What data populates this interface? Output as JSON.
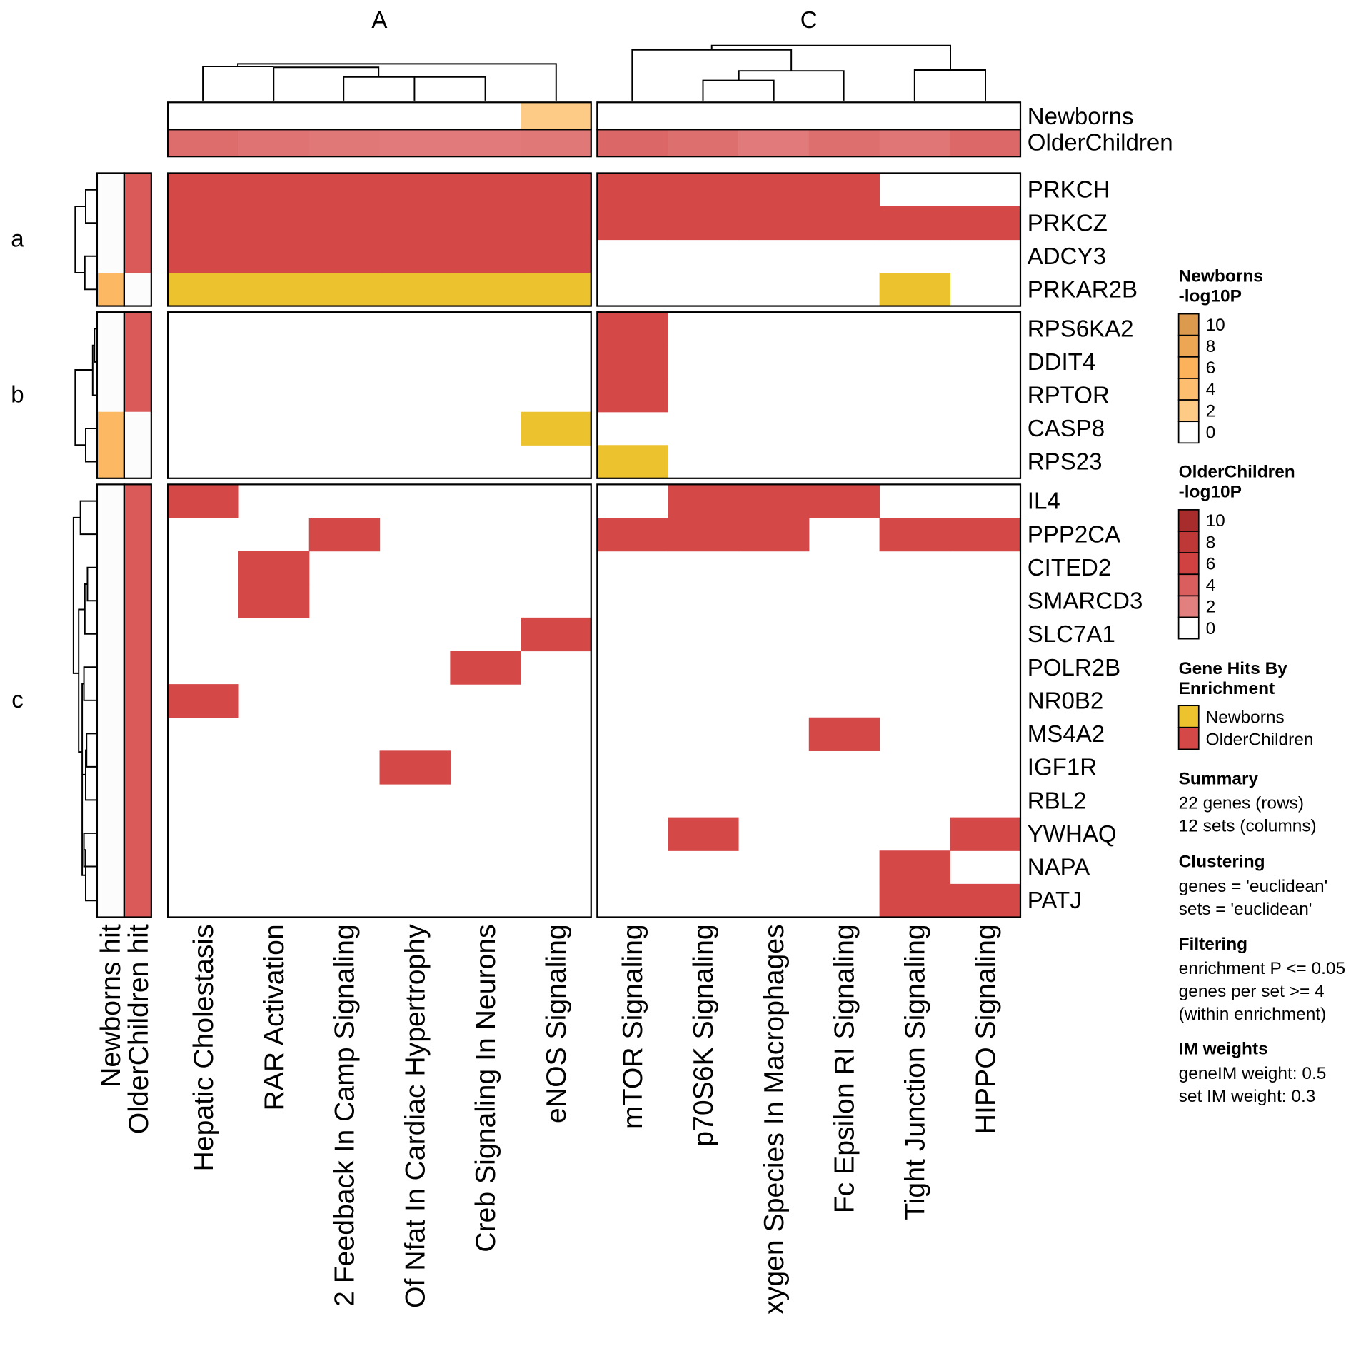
{
  "chart_data": {
    "type": "heatmap",
    "column_groups": [
      {
        "title": "A",
        "columns": [
          "Hepatic Cholestasis",
          "RAR Activation",
          "2 Feedback In Camp Signaling",
          "Of Nfat In Cardiac Hypertrophy",
          "Creb Signaling In Neurons",
          "eNOS Signaling"
        ]
      },
      {
        "title": "C",
        "columns": [
          "mTOR Signaling",
          "p70S6K Signaling",
          "xygen Species In Macrophages",
          "Fc Epsilon RI Signaling",
          "Tight Junction Signaling",
          "HIPPO Signaling"
        ]
      }
    ],
    "row_groups": [
      {
        "label": "a",
        "genes": [
          "PRKCH",
          "PRKCZ",
          "ADCY3",
          "PRKAR2B"
        ]
      },
      {
        "label": "b",
        "genes": [
          "RPS6KA2",
          "DDIT4",
          "RPTOR",
          "CASP8",
          "RPS23"
        ]
      },
      {
        "label": "c",
        "genes": [
          "IL4",
          "PPP2CA",
          "CITED2",
          "SMARCD3",
          "SLC7A1",
          "POLR2B",
          "NR0B2",
          "MS4A2",
          "IGF1R",
          "RBL2",
          "YWHAQ",
          "NAPA",
          "PATJ"
        ]
      }
    ],
    "cell_legend": {
      "N": "Newborns",
      "O": "OlderChildren",
      "0": "none"
    },
    "cells": {
      "PRKCH": "OOOOOO OOOO00",
      "PRKCZ": "OOOOOO OOOOOO",
      "ADCY3": "OOOOOO 000000",
      "PRKAR2B": "NNNNNN 0000N0",
      "RPS6KA2": "000000 O00000",
      "DDIT4": "000000 O00000",
      "RPTOR": "000000 O00000",
      "CASP8": "00000N 000000",
      "RPS23": "000000 N00000",
      "IL4": "O00000 0OOO00",
      "PPP2CA": "00O000 OOO0OO",
      "CITED2": "0O0000 000000",
      "SMARCD3": "0O0000 000000",
      "SLC7A1": "00000O 000000",
      "POLR2B": "0000O0 000000",
      "NR0B2": "O00000 000000",
      "MS4A2": "000000 000O00",
      "IGF1R": "000O00 000000",
      "RBL2": "000000 000000",
      "YWHAQ": "000000 0O000O",
      "NAPA": "000000 0000O0",
      "PATJ": "000000 0000OO"
    },
    "column_annotations": {
      "labels": [
        "Newborns",
        "OlderChildren"
      ],
      "Newborns": [
        0,
        0,
        0,
        0,
        0,
        2,
        0,
        0,
        0,
        0,
        0,
        0
      ],
      "OlderChildren": [
        3.2,
        2.8,
        2.5,
        2.3,
        2.3,
        2.5,
        3.5,
        3.0,
        2.3,
        3.0,
        2.6,
        3.4
      ]
    },
    "row_annotations": {
      "labels": [
        "Newborns hit",
        "OlderChildren hit"
      ],
      "Newborns hit": {
        "PRKAR2B": 5,
        "CASP8": 5,
        "RPS23": 5
      },
      "OlderChildren hit": {
        "default": 4,
        "PRKAR2B": 0,
        "CASP8": 0,
        "RPS23": 0
      }
    },
    "colors": {
      "newborns_cell": "#EDC22F",
      "olderchildren_cell": "#D44848",
      "newborns_scale": [
        "#FFFFFF",
        "#FECB87",
        "#FDBF6F",
        "#FBB25A",
        "#EDA653",
        "#DB9A4E"
      ],
      "olderchildren_scale": [
        "#FFFFFF",
        "#E28080",
        "#DA5E5E",
        "#D04242",
        "#BE3838",
        "#A82C2C"
      ]
    }
  },
  "legend": {
    "newborns": {
      "title1": "Newborns",
      "title2": "-log10P",
      "ticks": [
        "10",
        "8",
        "6",
        "4",
        "2",
        "0"
      ]
    },
    "olderchildren": {
      "title1": "OlderChildren",
      "title2": "-log10P",
      "ticks": [
        "10",
        "8",
        "6",
        "4",
        "2",
        "0"
      ]
    },
    "hits": {
      "title1": "Gene Hits By",
      "title2": "Enrichment",
      "items": [
        "Newborns",
        "OlderChildren"
      ]
    },
    "summary": {
      "title": "Summary",
      "lines": [
        "22 genes (rows)",
        "12 sets (columns)"
      ]
    },
    "clustering": {
      "title": "Clustering",
      "lines": [
        "genes = 'euclidean'",
        "sets = 'euclidean'"
      ]
    },
    "filtering": {
      "title": "Filtering",
      "lines": [
        "enrichment P <= 0.05",
        "genes per set >= 4",
        "(within enrichment)"
      ]
    },
    "im_weights": {
      "title": "IM weights",
      "lines": [
        "geneIM weight: 0.5",
        "set IM weight: 0.3"
      ]
    }
  }
}
